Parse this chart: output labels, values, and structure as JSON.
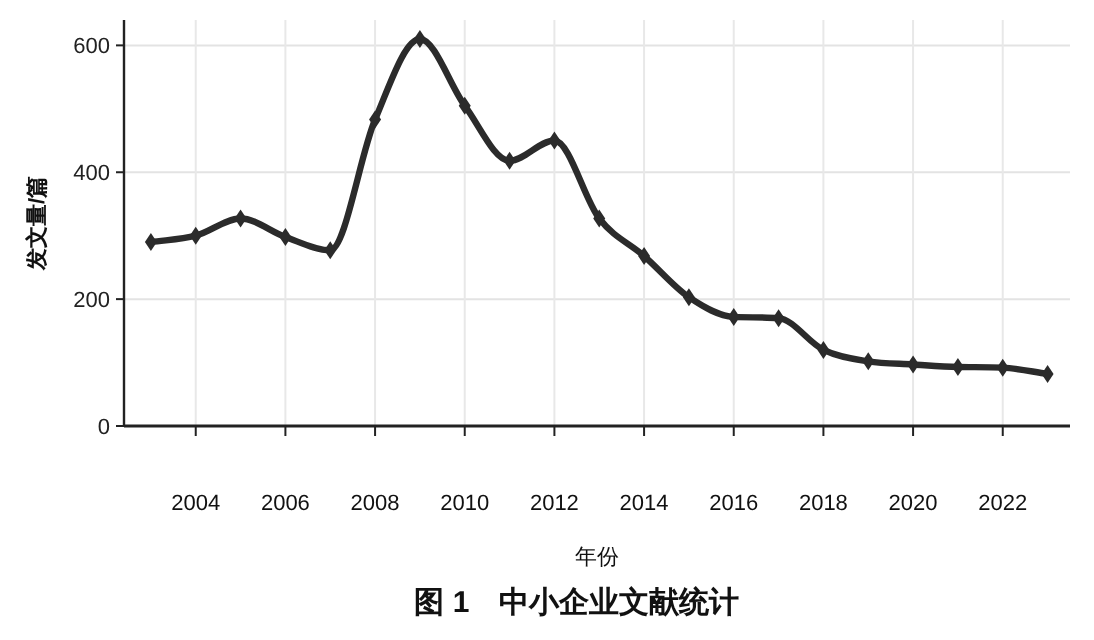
{
  "chart_data": {
    "type": "line",
    "title": "图 1　中小企业文献统计",
    "xlabel": "年份",
    "ylabel": "发文量/篇",
    "x": [
      2003,
      2004,
      2005,
      2006,
      2007,
      2008,
      2009,
      2010,
      2011,
      2012,
      2013,
      2014,
      2015,
      2016,
      2017,
      2018,
      2019,
      2020,
      2021,
      2022,
      2023
    ],
    "series": [
      {
        "color": "#2b2b2b",
        "values": [
          290,
          300,
          327,
          298,
          277,
          483,
          610,
          505,
          418,
          450,
          327,
          268,
          203,
          172,
          170,
          120,
          102,
          97,
          93,
          92,
          82
        ]
      }
    ],
    "xlim": [
      2002.4,
      2023.5
    ],
    "xticks": [
      2004,
      2006,
      2008,
      2010,
      2012,
      2014,
      2016,
      2018,
      2020,
      2022
    ],
    "ylim": [
      0,
      640
    ],
    "yticks": [
      0,
      200,
      400,
      600
    ],
    "grid": true,
    "marker": "diamond",
    "line_style": "solid"
  }
}
